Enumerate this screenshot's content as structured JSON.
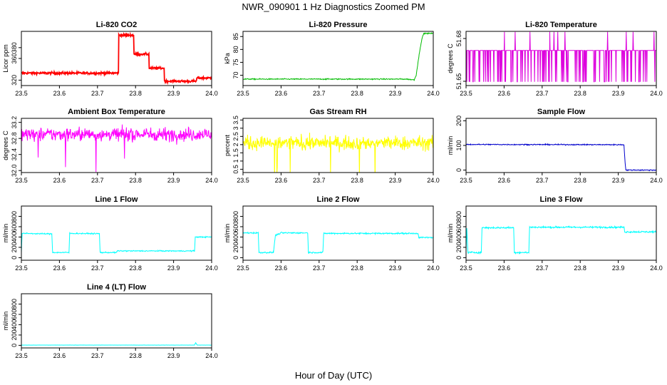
{
  "figure": {
    "title": "NWR_090901  1 Hz Diagnostics Zoomed PM",
    "xlabel": "Hour of Day (UTC)"
  },
  "chart_data": [
    {
      "id": "co2",
      "type": "line",
      "title": "Li-820 CO2",
      "ylabel": "Licor ppm",
      "color": "#ff0000",
      "xlim": [
        23.5,
        24.0
      ],
      "ylim": [
        310,
        410
      ],
      "xticks": [
        23.5,
        23.6,
        23.7,
        23.8,
        23.9,
        24.0
      ],
      "xtick_labels": [
        "23.5",
        "23.6",
        "23.7",
        "23.8",
        "23.9",
        "24.0"
      ],
      "yticks": [
        320,
        360,
        380
      ],
      "ytick_labels": [
        "320",
        "360",
        "380"
      ],
      "x": [
        23.5,
        23.755,
        23.755,
        23.795,
        23.795,
        23.835,
        23.835,
        23.875,
        23.875,
        23.96,
        23.96,
        24.0
      ],
      "y": [
        333,
        333,
        403,
        403,
        368,
        368,
        342,
        342,
        318,
        318,
        324,
        324
      ],
      "noise": 1.5
    },
    {
      "id": "pressure",
      "type": "line",
      "title": "Li-820 Pressure",
      "ylabel": "kPa",
      "color": "#00bb00",
      "xlim": [
        23.5,
        24.0
      ],
      "ylim": [
        66,
        87
      ],
      "xticks": [
        23.5,
        23.6,
        23.7,
        23.8,
        23.9,
        24.0
      ],
      "xtick_labels": [
        "23.5",
        "23.6",
        "23.7",
        "23.8",
        "23.9",
        "24.0"
      ],
      "yticks": [
        70,
        75,
        80,
        85
      ],
      "ytick_labels": [
        "70",
        "75",
        "80",
        "85"
      ],
      "x": [
        23.5,
        23.93,
        23.95,
        23.955,
        23.96,
        23.965,
        23.97,
        23.975,
        24.0
      ],
      "y": [
        68.5,
        68.5,
        68.2,
        70,
        75,
        80,
        84,
        86.2,
        86.2
      ],
      "noise": 0.15
    },
    {
      "id": "temperature",
      "type": "line",
      "title": "Li-820 Temperature",
      "ylabel": "degrees C",
      "color": "#dd00dd",
      "xlim": [
        23.5,
        24.0
      ],
      "ylim": [
        51.647,
        51.685
      ],
      "xticks": [
        23.5,
        23.6,
        23.7,
        23.8,
        23.9,
        24.0
      ],
      "xtick_labels": [
        "23.5",
        "23.6",
        "23.7",
        "23.8",
        "23.9",
        "24.0"
      ],
      "yticks": [
        51.65,
        51.68
      ],
      "ytick_labels": [
        "51.65",
        "51.68"
      ],
      "levels": [
        51.6496,
        51.6716,
        51.6846
      ],
      "noise": 0
    },
    {
      "id": "boxtemp",
      "type": "line",
      "title": "Ambient Box Temperature",
      "ylabel": "degrees C",
      "color": "#ff00ff",
      "xlim": [
        23.5,
        24.0
      ],
      "ylim": [
        31.95,
        33.3
      ],
      "xticks": [
        23.5,
        23.6,
        23.7,
        23.8,
        23.9,
        24.0
      ],
      "xtick_labels": [
        "23.5",
        "23.6",
        "23.7",
        "23.8",
        "23.9",
        "24.0"
      ],
      "yticks": [
        32.0,
        32.4,
        32.8,
        33.2
      ],
      "ytick_labels": [
        "32.0",
        "32.4",
        "32.8",
        "33.2"
      ],
      "mean": 32.9,
      "noise": 0.22
    },
    {
      "id": "rh",
      "type": "line",
      "title": "Gas Stream RH",
      "ylabel": "percent",
      "color": "#ffff00",
      "xlim": [
        23.5,
        24.0
      ],
      "ylim": [
        0.3,
        3.6
      ],
      "xticks": [
        23.5,
        23.6,
        23.7,
        23.8,
        23.9,
        24.0
      ],
      "xtick_labels": [
        "23.5",
        "23.6",
        "23.7",
        "23.8",
        "23.9",
        "24.0"
      ],
      "yticks": [
        0.5,
        1.0,
        1.5,
        2.0,
        2.5,
        3.0,
        3.5
      ],
      "ytick_labels": [
        "0.5",
        "1",
        "1.5",
        "2",
        "2.5",
        "3",
        "3.5"
      ],
      "mean": 2.1,
      "noise": 0.55
    },
    {
      "id": "sampleflow",
      "type": "line",
      "title": "Sample Flow",
      "ylabel": "ml/min",
      "color": "#0000cc",
      "xlim": [
        23.5,
        24.0
      ],
      "ylim": [
        -10,
        210
      ],
      "xticks": [
        23.5,
        23.6,
        23.7,
        23.8,
        23.9,
        24.0
      ],
      "xtick_labels": [
        "23.5",
        "23.6",
        "23.7",
        "23.8",
        "23.9",
        "24.0"
      ],
      "yticks": [
        0,
        100,
        200
      ],
      "ytick_labels": [
        "0",
        "100",
        "200"
      ],
      "x": [
        23.5,
        23.915,
        23.918,
        23.92,
        24.0
      ],
      "y": [
        104,
        103,
        30,
        0,
        0
      ],
      "noise": 1.5
    },
    {
      "id": "line1",
      "type": "line",
      "title": "Line 1 Flow",
      "ylabel": "ml/min",
      "color": "#00ffff",
      "xlim": [
        23.5,
        24.0
      ],
      "ylim": [
        -50,
        1000
      ],
      "xticks": [
        23.5,
        23.6,
        23.7,
        23.8,
        23.9,
        24.0
      ],
      "xtick_labels": [
        "23.5",
        "23.6",
        "23.7",
        "23.8",
        "23.9",
        "24.0"
      ],
      "yticks": [
        0,
        200,
        400,
        600,
        800
      ],
      "ytick_labels": [
        "0",
        "200",
        "400",
        "600",
        "800"
      ],
      "x": [
        23.5,
        23.502,
        23.58,
        23.582,
        23.625,
        23.627,
        23.705,
        23.707,
        23.75,
        23.752,
        23.955,
        23.957,
        24.0
      ],
      "y": [
        100,
        470,
        460,
        100,
        100,
        470,
        465,
        100,
        100,
        130,
        130,
        400,
        400
      ],
      "noise": 8
    },
    {
      "id": "line2",
      "type": "line",
      "title": "Line 2 Flow",
      "ylabel": "ml/min",
      "color": "#00ffff",
      "xlim": [
        23.5,
        24.0
      ],
      "ylim": [
        -50,
        1000
      ],
      "xticks": [
        23.5,
        23.6,
        23.7,
        23.8,
        23.9,
        24.0
      ],
      "xtick_labels": [
        "23.5",
        "23.6",
        "23.7",
        "23.8",
        "23.9",
        "24.0"
      ],
      "yticks": [
        0,
        200,
        400,
        600,
        800
      ],
      "ytick_labels": [
        "0",
        "200",
        "400",
        "600",
        "800"
      ],
      "x": [
        23.5,
        23.54,
        23.542,
        23.58,
        23.585,
        23.6,
        23.67,
        23.672,
        23.71,
        23.712,
        23.96,
        23.962,
        24.0
      ],
      "y": [
        480,
        480,
        100,
        100,
        430,
        480,
        480,
        100,
        100,
        470,
        470,
        390,
        390
      ],
      "noise": 10
    },
    {
      "id": "line3",
      "type": "line",
      "title": "Line 3 Flow",
      "ylabel": "ml/min",
      "color": "#00ffff",
      "xlim": [
        23.5,
        24.0
      ],
      "ylim": [
        -50,
        1000
      ],
      "xticks": [
        23.5,
        23.6,
        23.7,
        23.8,
        23.9,
        24.0
      ],
      "xtick_labels": [
        "23.5",
        "23.6",
        "23.7",
        "23.8",
        "23.9",
        "24.0"
      ],
      "yticks": [
        0,
        200,
        400,
        600,
        800
      ],
      "ytick_labels": [
        "0",
        "200",
        "400",
        "600",
        "800"
      ],
      "x": [
        23.5,
        23.502,
        23.505,
        23.54,
        23.542,
        23.625,
        23.627,
        23.665,
        23.667,
        23.915,
        23.917,
        24.0
      ],
      "y": [
        100,
        560,
        100,
        100,
        580,
        580,
        100,
        100,
        590,
        590,
        500,
        500
      ],
      "noise": 12
    },
    {
      "id": "line4",
      "type": "line",
      "title": "Line 4 (LT) Flow",
      "ylabel": "ml/min",
      "color": "#00ffff",
      "xlim": [
        23.5,
        24.0
      ],
      "ylim": [
        -50,
        1000
      ],
      "xticks": [
        23.5,
        23.6,
        23.7,
        23.8,
        23.9,
        24.0
      ],
      "xtick_labels": [
        "23.5",
        "23.6",
        "23.7",
        "23.8",
        "23.9",
        "24.0"
      ],
      "yticks": [
        0,
        200,
        400,
        600,
        800
      ],
      "ytick_labels": [
        "0",
        "200",
        "400",
        "600",
        "800"
      ],
      "x": [
        23.5,
        23.955,
        23.958,
        23.962,
        24.0
      ],
      "y": [
        5,
        5,
        50,
        5,
        5
      ],
      "noise": 1
    }
  ]
}
